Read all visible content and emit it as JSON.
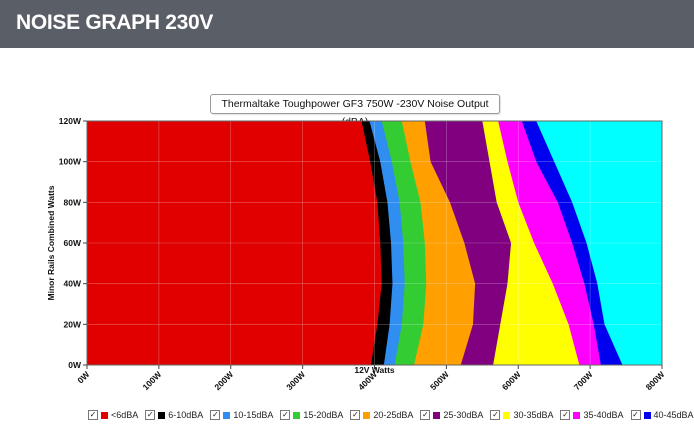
{
  "header": {
    "title": "NOISE GRAPH 230V"
  },
  "chart_data": {
    "type": "heatmap",
    "title": "Thermaltake Toughpower GF3 750W -230V Noise Output (dBA)",
    "xlabel": "12V Watts",
    "ylabel": "Minor Rails Combined Watts",
    "xlim": [
      0,
      800
    ],
    "ylim": [
      0,
      120
    ],
    "x_ticks": [
      "0W",
      "100W",
      "200W",
      "300W",
      "400W",
      "500W",
      "600W",
      "700W",
      "800W"
    ],
    "y_ticks": [
      "0W",
      "20W",
      "40W",
      "60W",
      "80W",
      "100W",
      "120W"
    ],
    "legend_position": "bottom",
    "bands": [
      {
        "name": "<6dBA",
        "color": "#e00000"
      },
      {
        "name": "6-10dBA",
        "color": "#000000"
      },
      {
        "name": "10-15dBA",
        "color": "#2f8ef0"
      },
      {
        "name": "15-20dBA",
        "color": "#33cc33"
      },
      {
        "name": "20-25dBA",
        "color": "#ff9f00"
      },
      {
        "name": "25-30dBA",
        "color": "#800080"
      },
      {
        "name": "30-35dBA",
        "color": "#ffff00"
      },
      {
        "name": "35-40dBA",
        "color": "#ff00ff"
      },
      {
        "name": "40-45dBA",
        "color": "#0000ee"
      }
    ],
    "background_band_color": "#00ffff",
    "levels_y": [
      0,
      20,
      40,
      60,
      80,
      100,
      120
    ],
    "red_strip": {
      "x_max": 5,
      "y_max": 86
    },
    "band_upper_edges_x": [
      [
        395,
        404,
        410,
        408,
        404,
        394,
        382
      ],
      [
        413,
        421,
        425,
        423,
        418,
        408,
        393
      ],
      [
        428,
        438,
        442,
        440,
        435,
        424,
        410
      ],
      [
        455,
        468,
        472,
        470,
        464,
        450,
        438
      ],
      [
        520,
        537,
        540,
        525,
        505,
        478,
        470
      ],
      [
        565,
        575,
        585,
        590,
        570,
        560,
        550
      ],
      [
        685,
        670,
        648,
        622,
        600,
        585,
        572
      ],
      [
        715,
        705,
        692,
        675,
        655,
        625,
        605
      ],
      [
        745,
        720,
        710,
        695,
        675,
        650,
        625
      ]
    ]
  }
}
